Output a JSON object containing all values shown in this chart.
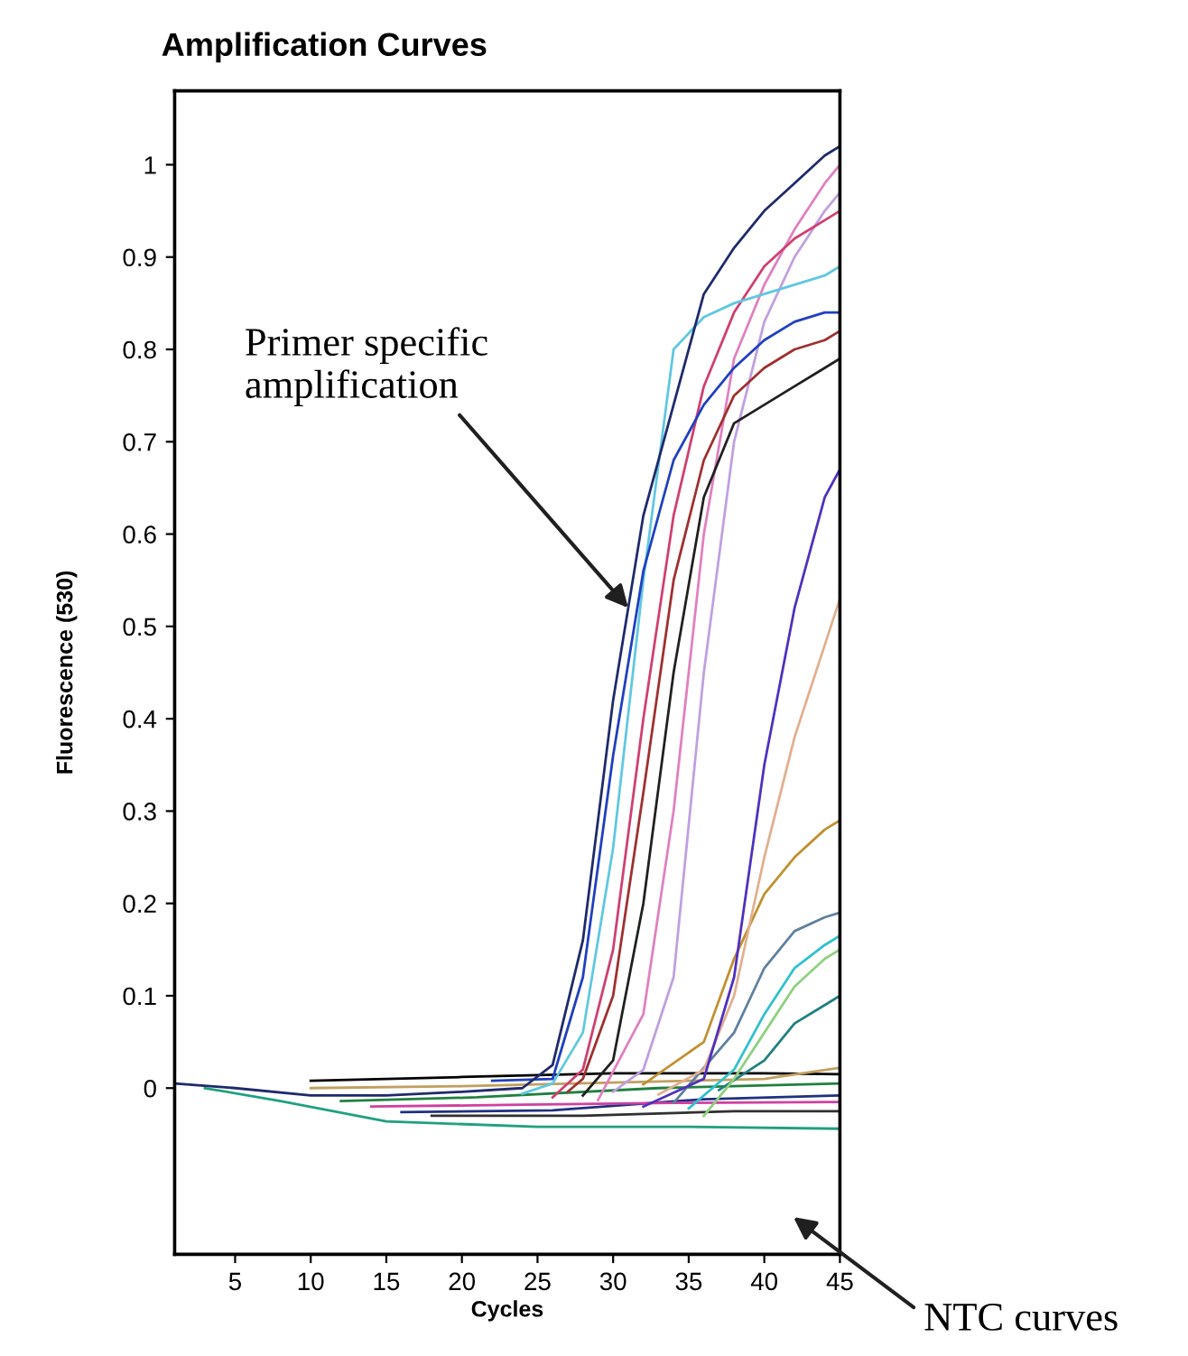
{
  "chart_data": {
    "type": "line",
    "title": "Amplification Curves",
    "xlabel": "Cycles",
    "ylabel": "Fluorescence (530)",
    "series": [
      {
        "color": "#1f2a6b",
        "x": [
          1,
          5,
          10,
          15,
          20,
          24,
          26,
          28,
          30,
          32,
          34,
          36,
          38,
          40,
          42,
          44,
          45
        ],
        "values": [
          0.005,
          0,
          -0.008,
          -0.008,
          -0.004,
          0,
          0.025,
          0.16,
          0.42,
          0.62,
          0.74,
          0.86,
          0.91,
          0.95,
          0.98,
          1.01,
          1.02
        ]
      },
      {
        "color": "#2040c0",
        "x": [
          22,
          26,
          28,
          30,
          32,
          34,
          36,
          38,
          40,
          42,
          44,
          45
        ],
        "values": [
          0.008,
          0.01,
          0.12,
          0.36,
          0.56,
          0.68,
          0.74,
          0.78,
          0.81,
          0.83,
          0.84,
          0.84
        ]
      },
      {
        "color": "#60c8e0",
        "x": [
          24,
          26,
          28,
          30,
          32,
          34,
          36,
          38,
          40,
          42,
          44,
          45
        ],
        "values": [
          -0.006,
          0.005,
          0.06,
          0.26,
          0.55,
          0.8,
          0.835,
          0.85,
          0.86,
          0.87,
          0.88,
          0.89
        ]
      },
      {
        "color": "#d04070",
        "x": [
          26,
          28,
          30,
          32,
          34,
          36,
          38,
          40,
          42,
          44,
          45
        ],
        "values": [
          -0.01,
          0.02,
          0.15,
          0.4,
          0.62,
          0.76,
          0.84,
          0.89,
          0.92,
          0.94,
          0.95
        ]
      },
      {
        "color": "#a03030",
        "x": [
          27,
          28,
          30,
          32,
          34,
          36,
          38,
          40,
          42,
          44,
          45
        ],
        "values": [
          -0.004,
          0.01,
          0.1,
          0.32,
          0.55,
          0.68,
          0.75,
          0.78,
          0.8,
          0.81,
          0.82
        ]
      },
      {
        "color": "#202020",
        "x": [
          28,
          30,
          32,
          34,
          36,
          38,
          40,
          42,
          44,
          45
        ],
        "values": [
          -0.008,
          0.03,
          0.2,
          0.45,
          0.64,
          0.72,
          0.74,
          0.76,
          0.78,
          0.79
        ]
      },
      {
        "color": "#e080c0",
        "x": [
          29,
          32,
          34,
          36,
          38,
          40,
          42,
          44,
          45
        ],
        "values": [
          -0.013,
          0.08,
          0.3,
          0.6,
          0.79,
          0.87,
          0.93,
          0.98,
          1.0
        ]
      },
      {
        "color": "#c0a0e0",
        "x": [
          30,
          32,
          34,
          36,
          38,
          40,
          42,
          44,
          45
        ],
        "values": [
          -0.004,
          0.02,
          0.12,
          0.45,
          0.7,
          0.83,
          0.9,
          0.95,
          0.97
        ]
      },
      {
        "color": "#5030c0",
        "x": [
          32,
          36,
          38,
          40,
          42,
          44,
          45
        ],
        "values": [
          -0.02,
          0.01,
          0.12,
          0.35,
          0.52,
          0.64,
          0.67
        ]
      },
      {
        "color": "#e0b090",
        "x": [
          33,
          36,
          38,
          40,
          42,
          44,
          45
        ],
        "values": [
          -0.007,
          0.02,
          0.1,
          0.25,
          0.38,
          0.48,
          0.53
        ]
      },
      {
        "color": "#c09030",
        "x": [
          32,
          36,
          38,
          40,
          42,
          44,
          45
        ],
        "values": [
          0.004,
          0.05,
          0.14,
          0.21,
          0.25,
          0.28,
          0.29
        ]
      },
      {
        "color": "#6080a0",
        "x": [
          34,
          38,
          40,
          42,
          44,
          45
        ],
        "values": [
          -0.016,
          0.06,
          0.13,
          0.17,
          0.185,
          0.19
        ]
      },
      {
        "color": "#30c0d0",
        "x": [
          35,
          38,
          40,
          42,
          44,
          45
        ],
        "values": [
          -0.022,
          0.02,
          0.08,
          0.13,
          0.155,
          0.165
        ]
      },
      {
        "color": "#90d080",
        "x": [
          36,
          38,
          40,
          42,
          44,
          45
        ],
        "values": [
          -0.03,
          0.01,
          0.06,
          0.11,
          0.14,
          0.15
        ]
      },
      {
        "color": "#208080",
        "x": [
          37,
          40,
          42,
          44,
          45
        ],
        "values": [
          -0.002,
          0.03,
          0.07,
          0.09,
          0.1
        ]
      },
      {
        "color": "#c0a060",
        "x": [
          10,
          20,
          30,
          40,
          45
        ],
        "values": [
          0.0,
          0.002,
          0.006,
          0.01,
          0.022
        ]
      },
      {
        "color": "#000000",
        "x": [
          10,
          20,
          30,
          40,
          45
        ],
        "values": [
          0.008,
          0.012,
          0.016,
          0.016,
          0.015
        ]
      },
      {
        "color": "#208040",
        "x": [
          12,
          21,
          33,
          45
        ],
        "values": [
          -0.014,
          -0.01,
          0.0,
          0.005
        ]
      },
      {
        "color": "#d040a0",
        "x": [
          14,
          24,
          34,
          45
        ],
        "values": [
          -0.02,
          -0.018,
          -0.016,
          -0.015
        ]
      },
      {
        "color": "#203080",
        "x": [
          16,
          26,
          36,
          45
        ],
        "values": [
          -0.026,
          -0.024,
          -0.012,
          -0.008
        ]
      },
      {
        "color": "#303030",
        "x": [
          18,
          28,
          38,
          45
        ],
        "values": [
          -0.03,
          -0.03,
          -0.025,
          -0.025
        ]
      },
      {
        "color": "#20a080",
        "x": [
          3,
          8,
          15,
          25,
          35,
          45
        ],
        "values": [
          0.0,
          -0.014,
          -0.036,
          -0.042,
          -0.042,
          -0.044
        ]
      }
    ],
    "xlim": [
      1,
      45
    ],
    "ylim": [
      -0.18,
      1.08
    ],
    "xticks": [
      5,
      10,
      15,
      20,
      25,
      30,
      35,
      40,
      45
    ],
    "yticks": [
      0,
      0.1,
      0.2,
      0.3,
      0.4,
      0.5,
      0.6,
      0.7,
      0.8,
      0.9,
      1
    ],
    "annotations": [
      {
        "text": "Primer specific\namplification",
        "x": 31,
        "y": 0.52
      },
      "NTC curves"
    ],
    "grid": false,
    "legend": false,
    "marker": "none",
    "line_style": "solid"
  }
}
